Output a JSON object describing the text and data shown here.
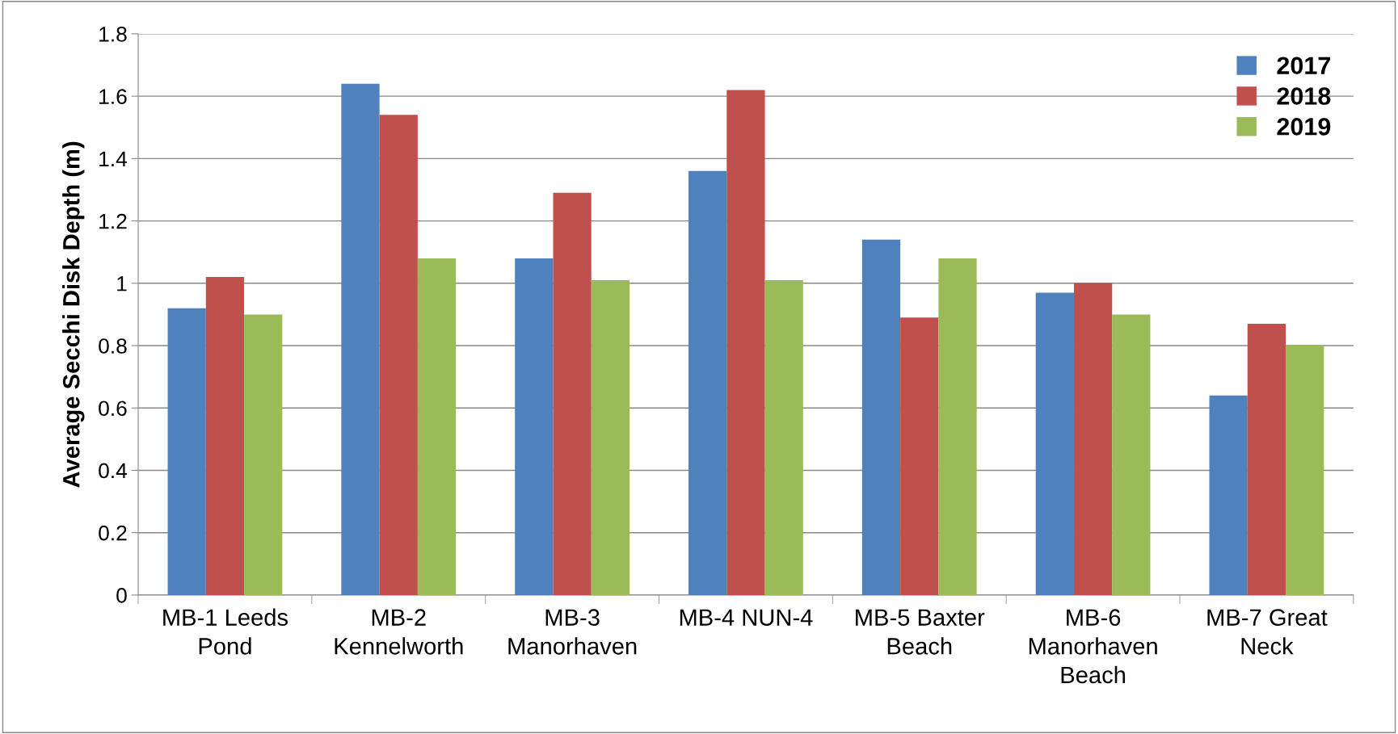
{
  "chart_data": {
    "type": "bar",
    "ylabel": "Average Secchi Disk Depth (m)",
    "categories": [
      "MB-1 Leeds\nPond",
      "MB-2\nKennelworth",
      "MB-3\nManorhaven",
      "MB-4 NUN-4",
      "MB-5 Baxter\nBeach",
      "MB-6\nManorhaven\nBeach",
      "MB-7 Great\nNeck"
    ],
    "series": [
      {
        "name": "2017",
        "color": "#4f81bd",
        "values": [
          0.92,
          1.64,
          1.08,
          1.36,
          1.14,
          0.97,
          0.64
        ]
      },
      {
        "name": "2018",
        "color": "#c0504d",
        "values": [
          1.02,
          1.54,
          1.29,
          1.62,
          0.89,
          1.0,
          0.87
        ]
      },
      {
        "name": "2019",
        "color": "#9bbb59",
        "values": [
          0.9,
          1.08,
          1.01,
          1.01,
          1.08,
          0.9,
          0.8
        ]
      }
    ],
    "ylim": [
      0,
      1.8
    ],
    "yticks": [
      {
        "value": 0,
        "label": "0"
      },
      0.2,
      0.4,
      0.6,
      0.8,
      {
        "value": 1,
        "label": "1"
      },
      1.2,
      1.4,
      1.6,
      1.8
    ],
    "grid": "y",
    "legend": "top right"
  }
}
